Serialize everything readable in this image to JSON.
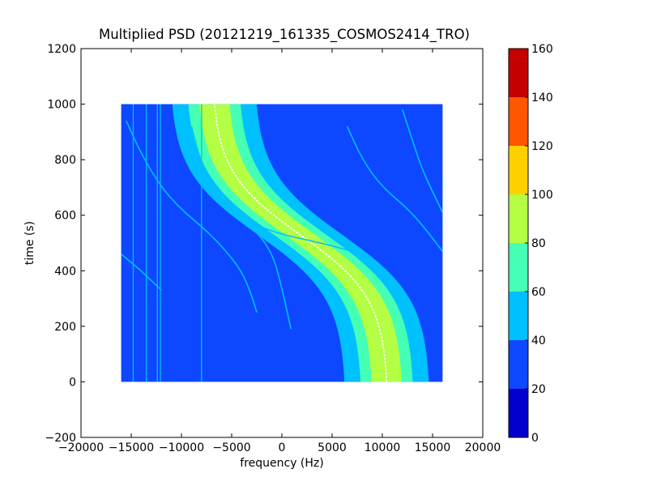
{
  "chart_data": {
    "type": "heatmap",
    "title": "Multiplied PSD (20121219_161335_COSMOS2414_TRO)",
    "xlabel": "frequency (Hz)",
    "ylabel": "time (s)",
    "xlim": [
      -20000,
      20000
    ],
    "ylim": [
      -200,
      1200
    ],
    "xticks": [
      -20000,
      -15000,
      -10000,
      -5000,
      0,
      5000,
      10000,
      15000,
      20000
    ],
    "xtick_labels": [
      "−20000",
      "−15000",
      "−10000",
      "−5000",
      "0",
      "5000",
      "10000",
      "15000",
      "20000"
    ],
    "yticks": [
      -200,
      0,
      200,
      400,
      600,
      800,
      1000,
      1200
    ],
    "ytick_labels": [
      "−200",
      "0",
      "200",
      "400",
      "600",
      "800",
      "1000",
      "1200"
    ],
    "data_extent": {
      "x": [
        -16000,
        16000
      ],
      "y": [
        0,
        1000
      ]
    },
    "background_level": 25,
    "colorbar": {
      "min": 0,
      "max": 160,
      "ticks": [
        0,
        20,
        40,
        60,
        80,
        100,
        120,
        140,
        160
      ],
      "tick_labels": [
        "0",
        "20",
        "40",
        "60",
        "80",
        "100",
        "120",
        "140",
        "160"
      ],
      "bands": [
        {
          "from": 0,
          "to": 20,
          "color": "#0000cc"
        },
        {
          "from": 20,
          "to": 40,
          "color": "#0d47ff"
        },
        {
          "from": 40,
          "to": 60,
          "color": "#00c0ff"
        },
        {
          "from": 60,
          "to": 80,
          "color": "#44ffb4"
        },
        {
          "from": 80,
          "to": 100,
          "color": "#b4ff44"
        },
        {
          "from": 100,
          "to": 120,
          "color": "#ffd000"
        },
        {
          "from": 120,
          "to": 140,
          "color": "#ff5600"
        },
        {
          "from": 140,
          "to": 160,
          "color": "#c40000"
        }
      ]
    },
    "main_trace": {
      "center_freq": 1800,
      "amplitude": 8800,
      "t_center": 530,
      "t_scale": 230,
      "bands": [
        {
          "half_width": 4200,
          "level": 50
        },
        {
          "half_width": 2600,
          "level": 70
        },
        {
          "half_width": 1500,
          "level": 90
        }
      ],
      "peak_level": 160
    },
    "side_traces": [
      {
        "points": [
          [
            -15500,
            940
          ],
          [
            -14000,
            820
          ],
          [
            -12000,
            700
          ],
          [
            -10000,
            620
          ],
          [
            -8000,
            560
          ],
          [
            -6000,
            490
          ],
          [
            -4000,
            400
          ],
          [
            -3000,
            310
          ],
          [
            -2500,
            250
          ]
        ],
        "level": 50
      },
      {
        "points": [
          [
            -9000,
            920
          ],
          [
            -8000,
            780
          ],
          [
            -6000,
            680
          ],
          [
            -3000,
            560
          ],
          [
            -1000,
            470
          ],
          [
            0,
            340
          ],
          [
            900,
            190
          ]
        ],
        "level": 50
      },
      {
        "points": [
          [
            -10200,
            990
          ],
          [
            -9000,
            790
          ],
          [
            -7000,
            690
          ],
          [
            -3000,
            570
          ],
          [
            0,
            530
          ],
          [
            4000,
            500
          ],
          [
            8000,
            460
          ],
          [
            10000,
            420
          ],
          [
            12000,
            280
          ],
          [
            14000,
            90
          ]
        ],
        "level": 50
      },
      {
        "points": [
          [
            -16000,
            460
          ],
          [
            -14000,
            400
          ],
          [
            -12000,
            330
          ]
        ],
        "level": 50
      },
      {
        "points": [
          [
            6500,
            920
          ],
          [
            8000,
            800
          ],
          [
            10000,
            700
          ],
          [
            13000,
            610
          ],
          [
            16000,
            470
          ]
        ],
        "level": 50
      },
      {
        "points": [
          [
            12000,
            980
          ],
          [
            13000,
            870
          ],
          [
            14000,
            760
          ],
          [
            16000,
            610
          ]
        ],
        "level": 50
      }
    ],
    "vertical_lines": [
      {
        "freq": -12400,
        "level": 50
      },
      {
        "freq": -12100,
        "level": 50
      },
      {
        "freq": -8000,
        "level": 50
      },
      {
        "freq": -13500,
        "level": 40
      },
      {
        "freq": -14800,
        "level": 40
      }
    ]
  }
}
